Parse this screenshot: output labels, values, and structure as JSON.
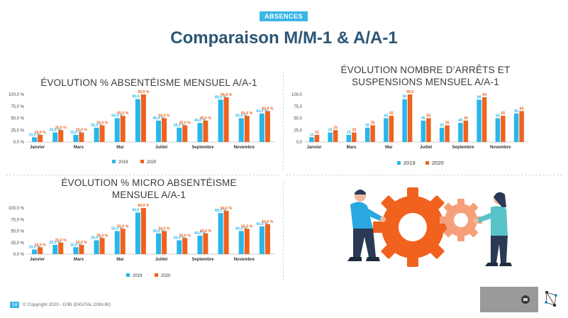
{
  "header": {
    "badge": "ABSENCES",
    "title": "Comparaison M/M-1 & A/A-1"
  },
  "panels": [
    {
      "title_lines": [
        "ÉVOLUTION % ABSENTÉISME MENSUEL A/A-1"
      ]
    },
    {
      "title_lines": [
        "ÉVOLUTION NOMBRE D’ARRÊTS ET",
        "SUSPENSIONS MENSUEL A/A-1"
      ]
    },
    {
      "title_lines": [
        "ÉVOLUTION % MICRO ABSENTÉISME",
        "MENSUEL A/A-1"
      ]
    }
  ],
  "colors": {
    "series_2019": "#29b6ea",
    "series_2020": "#f0621e"
  },
  "chart_data": [
    {
      "type": "bar",
      "categories": [
        "Janvier",
        "",
        "Mars",
        "",
        "Mai",
        "",
        "Juillet",
        "",
        "Septembre",
        "",
        "Novembre",
        ""
      ],
      "yticks": [
        "0,0 %",
        "25,0 %",
        "50,0 %",
        "75,0 %",
        "100,0 %"
      ],
      "ylim": [
        0,
        100
      ],
      "series": [
        {
          "name": "2019",
          "values": [
            10,
            20,
            15,
            30,
            50,
            90,
            45,
            30,
            40,
            89,
            50,
            60
          ],
          "labels": [
            "10,0 %",
            "20,0 %",
            "15,0 %",
            "30,0 %",
            "50,0 %",
            "90,0 %",
            "45,0 %",
            "30,0 %",
            "40,0 %",
            "89,0 %",
            "50,0 %",
            "60,0 %"
          ]
        },
        {
          "name": "2020",
          "values": [
            15,
            25,
            20,
            35,
            55,
            99.9,
            50,
            35,
            45,
            94,
            55,
            65
          ],
          "labels": [
            "15,0 %",
            "25,0 %",
            "20,0 %",
            "35,0 %",
            "55,0 %",
            "99,9 %",
            "50,0 %",
            "35,0 %",
            "45,0 %",
            "94,0 %",
            "55,0 %",
            "65,0 %"
          ]
        }
      ],
      "legend": "bottom"
    },
    {
      "type": "bar",
      "categories": [
        "Janvier",
        "",
        "Mars",
        "",
        "Mai",
        "",
        "Juillet",
        "",
        "Septembre",
        "",
        "Novembre",
        ""
      ],
      "yticks": [
        "0,0",
        "25,0",
        "50,0",
        "75,0",
        "100,0"
      ],
      "ylim": [
        0,
        100
      ],
      "series": [
        {
          "name": "2019",
          "values": [
            10,
            20,
            15,
            30,
            50,
            90,
            45,
            30,
            40,
            89,
            50,
            60
          ],
          "labels": [
            "10",
            "20",
            "15",
            "30",
            "50",
            "90",
            "45",
            "30",
            "40",
            "89",
            "50",
            "60"
          ]
        },
        {
          "name": "2020",
          "values": [
            15,
            25,
            20,
            35,
            55,
            99.9,
            50,
            35,
            45,
            94,
            55,
            65
          ],
          "labels": [
            "15",
            "25",
            "20",
            "35",
            "55",
            "99,9",
            "50",
            "35",
            "45",
            "94",
            "55",
            "65"
          ]
        }
      ],
      "legend": "bottom"
    },
    {
      "type": "bar",
      "categories": [
        "Janvier",
        "",
        "Mars",
        "",
        "Mai",
        "",
        "Juillet",
        "",
        "Septembre",
        "",
        "Novembre",
        ""
      ],
      "yticks": [
        "0,0 %",
        "25,0 %",
        "50,0 %",
        "75,0 %",
        "100,0 %"
      ],
      "ylim": [
        0,
        100
      ],
      "series": [
        {
          "name": "2019",
          "values": [
            10,
            20,
            15,
            30,
            50,
            90,
            45,
            30,
            40,
            89,
            50,
            60
          ],
          "labels": [
            "10,0 %",
            "20,0 %",
            "15,0 %",
            "30,0 %",
            "50,0 %",
            "90,0 %",
            "45,0 %",
            "30,0 %",
            "40,0 %",
            "89,0 %",
            "50,0 %",
            "60,0 %"
          ]
        },
        {
          "name": "2020",
          "values": [
            15,
            25,
            20,
            35,
            55,
            99.9,
            50,
            35,
            45,
            94,
            55,
            65
          ],
          "labels": [
            "15,0 %",
            "25,0 %",
            "20,0 %",
            "35,0 %",
            "55,0 %",
            "99,9 %",
            "50,0 %",
            "35,0 %",
            "45,0 %",
            "94,0 %",
            "55,0 %",
            "65,0 %"
          ]
        }
      ],
      "legend": "bottom"
    }
  ],
  "illustration": {
    "icon": "people-turning-gears-icon"
  },
  "footer": {
    "page_number": "14",
    "copyright": "© Copyright 2020 - D²BI (DIGITAL DSN BI)"
  },
  "video": {
    "icon": "play-icon"
  },
  "logo": {
    "icon": "brand-logo-icon"
  }
}
